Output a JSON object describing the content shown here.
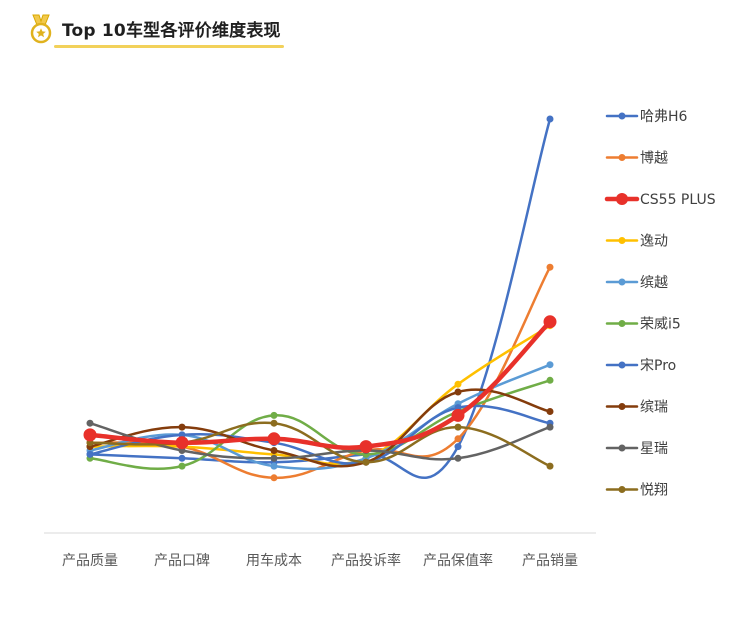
{
  "header": {
    "title": "Top 10车型各评价维度表现",
    "icon": "medal-icon",
    "accent_color": "#F2D15A"
  },
  "chart_data": {
    "type": "line",
    "smooth": true,
    "title": "Top 10车型各评价维度表现",
    "xlabel": "",
    "ylabel": "",
    "grid": false,
    "legend_position": "right",
    "ylim": [
      0,
      100
    ],
    "categories": [
      "产品质量",
      "产品口碑",
      "用车成本",
      "产品投诉率",
      "产品保值率",
      "产品销量"
    ],
    "series": [
      {
        "name": "哈弗H6",
        "color": "#4472C4",
        "highlight": false,
        "values": [
          14,
          13,
          12,
          14,
          16,
          100
        ]
      },
      {
        "name": "博越",
        "color": "#ED7D31",
        "highlight": false,
        "values": [
          17,
          16,
          8,
          15,
          18,
          62
        ]
      },
      {
        "name": "CS55 PLUS",
        "color": "#E8312A",
        "highlight": true,
        "values": [
          19,
          17,
          18,
          16,
          24,
          48
        ]
      },
      {
        "name": "逸动",
        "color": "#FFC000",
        "highlight": false,
        "values": [
          16,
          16,
          14,
          13,
          32,
          47
        ]
      },
      {
        "name": "缤越",
        "color": "#5B9BD5",
        "highlight": false,
        "values": [
          15,
          19,
          11,
          13,
          27,
          37
        ]
      },
      {
        "name": "荣威i5",
        "color": "#70AD47",
        "highlight": false,
        "values": [
          13,
          11,
          24,
          14,
          25,
          33
        ]
      },
      {
        "name": "宋Pro",
        "color": "#4472C4",
        "highlight": false,
        "values": [
          14,
          19,
          17,
          12,
          26,
          22
        ]
      },
      {
        "name": "缤瑞",
        "color": "#843C0C",
        "highlight": false,
        "values": [
          16,
          21,
          15,
          12,
          30,
          25
        ]
      },
      {
        "name": "星瑞",
        "color": "#636363",
        "highlight": false,
        "values": [
          22,
          15,
          13,
          15,
          13,
          21
        ]
      },
      {
        "name": "悦翔",
        "color": "#8C6D1F",
        "highlight": false,
        "values": [
          17,
          17,
          22,
          12,
          21,
          11
        ]
      }
    ]
  }
}
